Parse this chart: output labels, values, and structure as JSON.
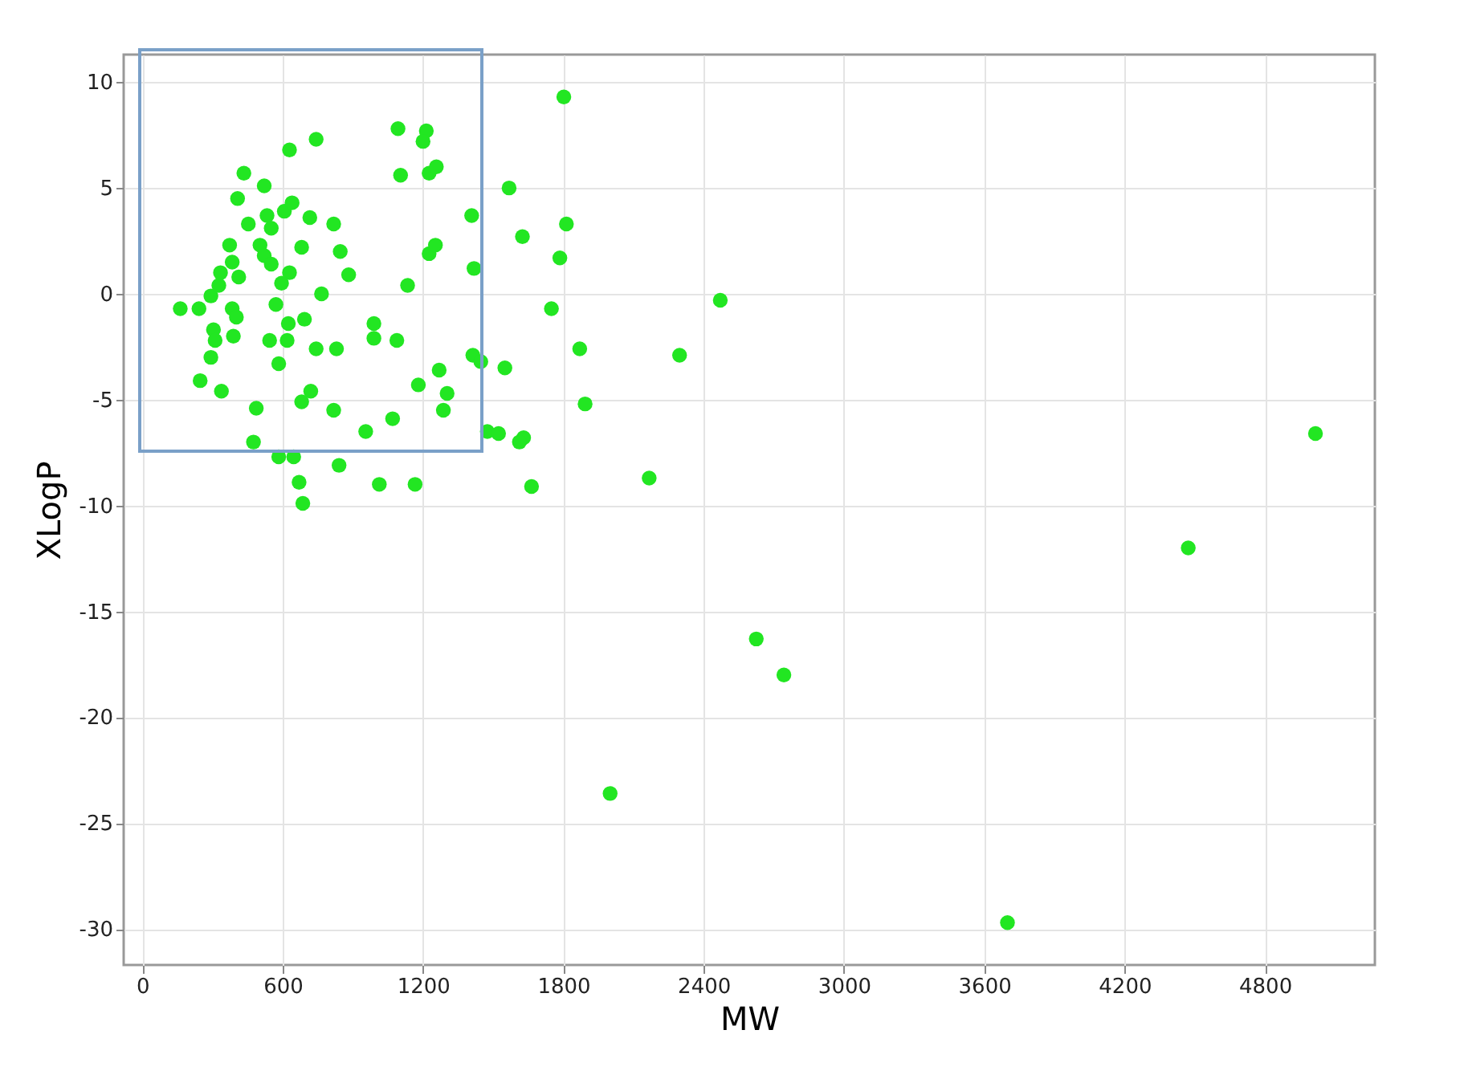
{
  "chart_data": {
    "type": "scatter",
    "xlabel": "MW",
    "ylabel": "XLogP",
    "xlim": [
      -80,
      5270
    ],
    "ylim": [
      -31.7,
      11.3
    ],
    "xticks": [
      0,
      600,
      1200,
      1800,
      2400,
      3000,
      3600,
      4200,
      4800
    ],
    "yticks": [
      -30,
      -25,
      -20,
      -15,
      -10,
      -5,
      0,
      5,
      10
    ],
    "grid": true,
    "marker": "circle",
    "series": [
      {
        "color": "#22e622",
        "x": [
          162,
          242,
          293,
          327,
          334,
          373,
          384,
          412,
          434,
          407,
          521,
          453,
          533,
          551,
          503,
          521,
          551,
          607,
          640,
          629,
          743,
          716,
          818,
          681,
          846,
          882,
          629,
          595,
          766,
          384,
          402,
          571,
          304,
          389,
          311,
          693,
          624,
          544,
          619,
          743,
          830,
          293,
          583,
          990,
          990,
          1088,
          1134,
          247,
          338,
          720,
          681,
          487,
          818,
          955,
          1070,
          1180,
          1269,
          1303,
          1287,
          1413,
          1447,
          1550,
          475,
          583,
          647,
          841,
          670,
          686,
          1013,
          1166,
          1093,
          1214,
          1200,
          1104,
          1226,
          1257,
          1226,
          1253,
          1408,
          1418,
          1568,
          1625,
          1475,
          1523,
          1630,
          1612,
          1664,
          1802,
          1813,
          1785,
          1749,
          2471,
          1870,
          2297,
          1893,
          2167,
          5016,
          4472,
          2625,
          2743,
          2000,
          3699
        ],
        "values": [
          -0.7,
          -0.7,
          -0.1,
          0.4,
          1.0,
          2.3,
          1.5,
          0.8,
          5.7,
          4.5,
          5.1,
          3.3,
          3.7,
          3.1,
          2.3,
          1.8,
          1.4,
          3.9,
          4.3,
          6.8,
          7.3,
          3.6,
          3.3,
          2.2,
          2.0,
          0.9,
          1.0,
          0.5,
          0.0,
          -0.7,
          -1.1,
          -0.5,
          -1.7,
          -2.0,
          -2.2,
          -1.2,
          -1.4,
          -2.2,
          -2.2,
          -2.6,
          -2.6,
          -3.0,
          -3.3,
          -1.4,
          -2.1,
          -2.2,
          0.4,
          -4.1,
          -4.6,
          -4.6,
          -5.1,
          -5.4,
          -5.5,
          -6.5,
          -5.9,
          -4.3,
          -3.6,
          -4.7,
          -5.5,
          -2.9,
          -3.2,
          -3.5,
          -7.0,
          -7.7,
          -7.7,
          -8.1,
          -8.9,
          -9.9,
          -9.0,
          -9.0,
          7.8,
          7.7,
          7.2,
          5.6,
          5.7,
          6.0,
          1.9,
          2.3,
          3.7,
          1.2,
          5.0,
          2.7,
          -6.5,
          -6.6,
          -6.8,
          -7.0,
          -9.1,
          9.3,
          3.3,
          1.7,
          -0.7,
          -0.3,
          -2.6,
          -2.9,
          -5.2,
          -8.7,
          -6.6,
          -12.0,
          -16.3,
          -18.0,
          -23.6,
          -29.7
        ]
      }
    ]
  }
}
